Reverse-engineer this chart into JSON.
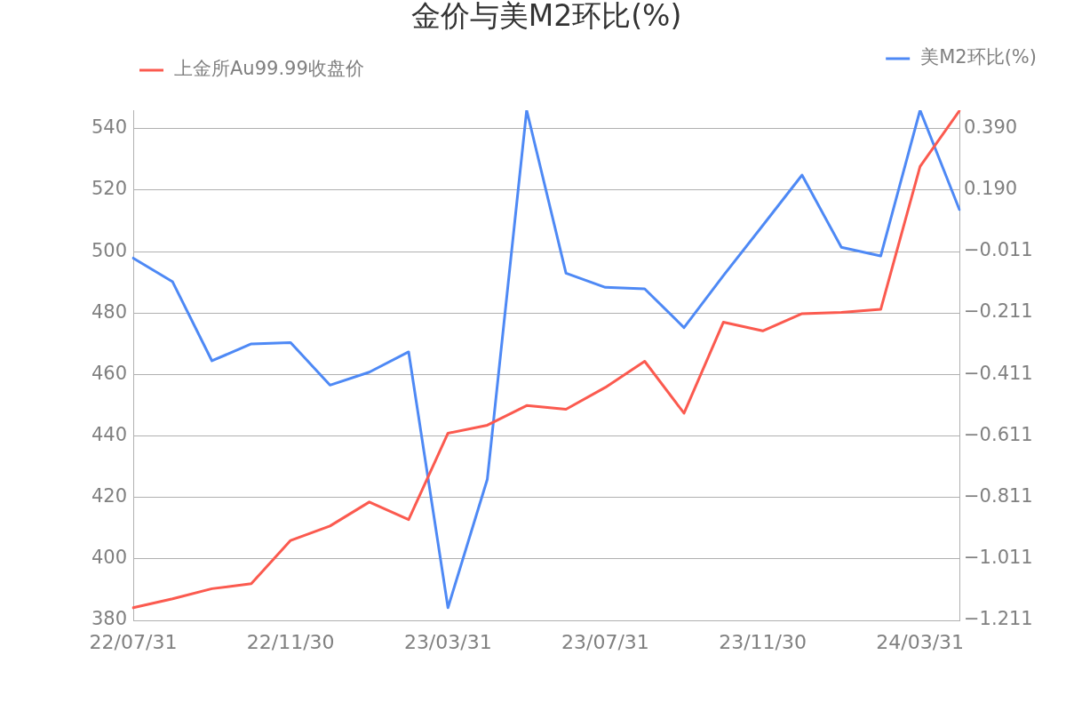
{
  "chart_data": {
    "type": "line",
    "title": "金价与美M2环比(%)",
    "categories": [
      "22/07/31",
      null,
      null,
      null,
      "22/11/30",
      null,
      null,
      null,
      "23/03/31",
      null,
      null,
      null,
      "23/07/31",
      null,
      null,
      null,
      "23/11/30",
      null,
      null,
      null,
      "24/03/31",
      null
    ],
    "series": [
      {
        "name": "上金所Au99.99收盘价",
        "color": "#fb5a4f",
        "values": [
          384.1,
          387.0,
          390.3,
          391.9,
          406.0,
          410.7,
          418.5,
          412.8,
          440.9,
          443.5,
          449.9,
          448.7,
          455.8,
          464.3,
          447.4,
          477.0,
          474.2,
          479.8,
          480.2,
          481.2,
          527.7,
          545.8
        ]
      },
      {
        "name": "美M2环比(%)",
        "color": "#4e89f5",
        "axis": "y2",
        "values": [
          -0.033,
          -0.11,
          -0.367,
          -0.312,
          -0.308,
          -0.446,
          -0.404,
          -0.338,
          -1.17,
          -0.752,
          0.448,
          -0.082,
          -0.128,
          -0.133,
          -0.259,
          -0.09,
          0.073,
          0.237,
          0.002,
          -0.026,
          0.448,
          0.125
        ]
      }
    ],
    "ylim": [
      380,
      546
    ],
    "yticks": [
      380,
      400,
      420,
      440,
      460,
      480,
      500,
      520,
      540
    ],
    "y2lim": [
      -1.211,
      0.448
    ],
    "y2ticks": [
      {
        "value": -1.211,
        "label": "−1.211"
      },
      {
        "value": -1.011,
        "label": "−1.011"
      },
      {
        "value": -0.811,
        "label": "−0.811"
      },
      {
        "value": -0.611,
        "label": "−0.611"
      },
      {
        "value": -0.411,
        "label": "−0.411"
      },
      {
        "value": -0.211,
        "label": "−0.211"
      },
      {
        "value": -0.011,
        "label": "−0.011"
      },
      {
        "value": 0.19,
        "label": "0.190"
      },
      {
        "value": 0.39,
        "label": "0.390"
      }
    ],
    "grid": "y",
    "legend": "top"
  }
}
